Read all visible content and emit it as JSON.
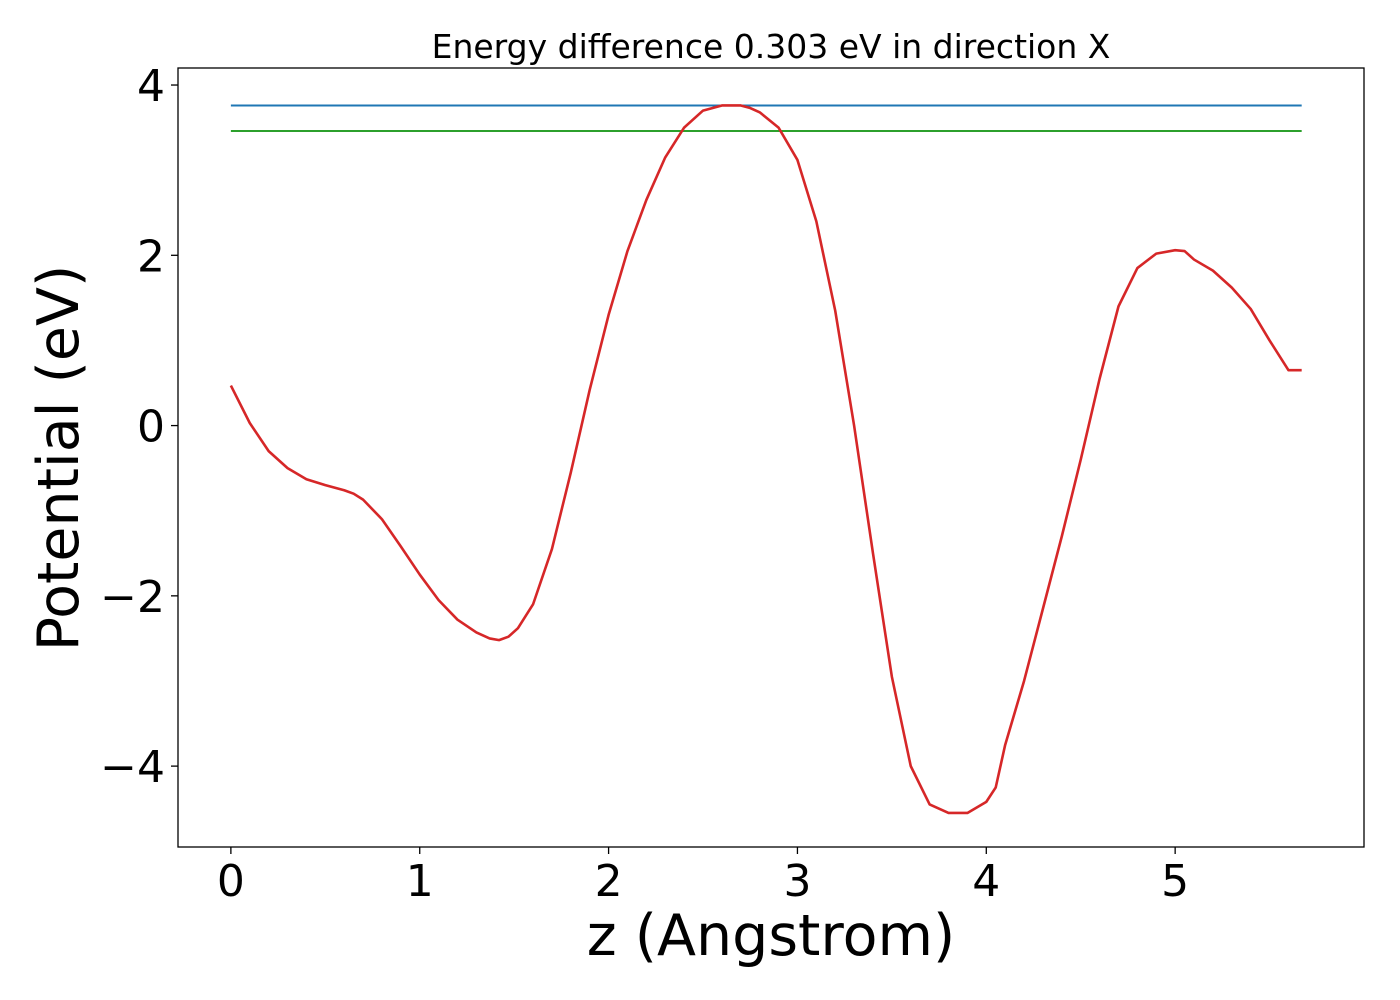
{
  "chart_data": {
    "type": "line",
    "title": "Energy difference 0.303 eV in direction X",
    "xlabel": "z (Angstrom)",
    "ylabel": "Potential (eV)",
    "xlim": [
      -0.28,
      6.0
    ],
    "ylim": [
      -4.95,
      4.2
    ],
    "xticks": [
      0,
      1,
      2,
      3,
      4,
      5
    ],
    "yticks": [
      -4,
      -2,
      0,
      2,
      4
    ],
    "xtick_labels": [
      "0",
      "1",
      "2",
      "3",
      "4",
      "5"
    ],
    "ytick_labels": [
      "−4",
      "−2",
      "0",
      "2",
      "4"
    ],
    "grid": false,
    "legend": "none",
    "series": [
      {
        "kind": "hline",
        "color": "#1f77b4",
        "x": [
          0,
          5.67
        ],
        "y": [
          3.76,
          3.76
        ]
      },
      {
        "kind": "hline",
        "color": "#2ca02c",
        "x": [
          0,
          5.67
        ],
        "y": [
          3.46,
          3.46
        ]
      },
      {
        "kind": "curve",
        "color": "#d62728",
        "x": [
          0,
          0.1,
          0.2,
          0.3,
          0.4,
          0.5,
          0.6,
          0.65,
          0.7,
          0.8,
          0.9,
          1.0,
          1.1,
          1.2,
          1.3,
          1.37,
          1.42,
          1.47,
          1.52,
          1.6,
          1.7,
          1.8,
          1.9,
          2.0,
          2.1,
          2.2,
          2.3,
          2.4,
          2.5,
          2.6,
          2.7,
          2.75,
          2.8,
          2.9,
          3.0,
          3.1,
          3.2,
          3.3,
          3.4,
          3.5,
          3.6,
          3.7,
          3.8,
          3.9,
          4.0,
          4.05,
          4.1,
          4.2,
          4.3,
          4.4,
          4.5,
          4.6,
          4.7,
          4.8,
          4.9,
          5.0,
          5.05,
          5.1,
          5.2,
          5.3,
          5.4,
          5.5,
          5.6,
          5.67
        ],
        "y": [
          0.47,
          0.03,
          -0.3,
          -0.5,
          -0.63,
          -0.7,
          -0.76,
          -0.8,
          -0.87,
          -1.1,
          -1.42,
          -1.75,
          -2.05,
          -2.28,
          -2.43,
          -2.5,
          -2.52,
          -2.48,
          -2.38,
          -2.1,
          -1.45,
          -0.55,
          0.42,
          1.3,
          2.05,
          2.65,
          3.15,
          3.5,
          3.7,
          3.76,
          3.76,
          3.73,
          3.68,
          3.5,
          3.12,
          2.4,
          1.35,
          0.0,
          -1.5,
          -2.95,
          -4.0,
          -4.45,
          -4.55,
          -4.55,
          -4.42,
          -4.25,
          -3.75,
          -3.0,
          -2.15,
          -1.3,
          -0.4,
          0.55,
          1.4,
          1.85,
          2.02,
          2.06,
          2.05,
          1.95,
          1.82,
          1.62,
          1.37,
          1.0,
          0.65,
          0.65
        ]
      }
    ]
  }
}
